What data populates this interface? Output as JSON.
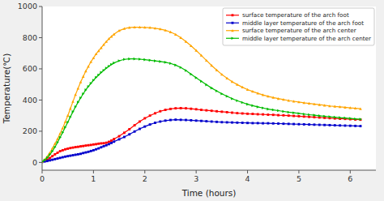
{
  "chart_data": {
    "type": "line",
    "title": "",
    "xlabel": "Time (hours)",
    "ylabel": "Temperature(℃)",
    "xlim": [
      0,
      6.5
    ],
    "ylim": [
      -50,
      1000
    ],
    "xticks": [
      0,
      1,
      2,
      3,
      4,
      5,
      6
    ],
    "yticks": [
      0,
      200,
      400,
      600,
      800,
      1000
    ],
    "grid": false,
    "legend": "upper right",
    "x": [
      0,
      0.05,
      0.1,
      0.15,
      0.2,
      0.25,
      0.3,
      0.35,
      0.4,
      0.45,
      0.5,
      0.55,
      0.6,
      0.65,
      0.7,
      0.75,
      0.8,
      0.85,
      0.9,
      0.95,
      1.0,
      1.05,
      1.1,
      1.15,
      1.2,
      1.25,
      1.3,
      1.35,
      1.4,
      1.5,
      1.6,
      1.7,
      1.8,
      1.9,
      2.0,
      2.1,
      2.2,
      2.3,
      2.4,
      2.5,
      2.6,
      2.7,
      2.8,
      2.9,
      3.0,
      3.1,
      3.2,
      3.3,
      3.4,
      3.5,
      3.6,
      3.7,
      3.8,
      3.9,
      4.0,
      4.1,
      4.2,
      4.3,
      4.4,
      4.5,
      4.6,
      4.7,
      4.8,
      4.9,
      5.0,
      5.1,
      5.2,
      5.3,
      5.4,
      5.5,
      5.6,
      5.7,
      5.8,
      5.9,
      6.0,
      6.1,
      6.2
    ],
    "series": [
      {
        "name": "surface temperature of the arch foot",
        "color": "#ff0000",
        "marker": "square",
        "values": [
          5,
          10,
          18,
          28,
          40,
          52,
          62,
          72,
          78,
          84,
          88,
          92,
          95,
          98,
          100,
          103,
          105,
          108,
          110,
          112,
          115,
          117,
          120,
          122,
          123,
          126,
          132,
          140,
          150,
          168,
          190,
          213,
          238,
          262,
          283,
          300,
          315,
          328,
          337,
          343,
          347,
          348,
          347,
          344,
          341,
          337,
          334,
          331,
          328,
          325,
          322,
          319,
          316,
          314,
          312,
          311,
          309,
          308,
          306,
          305,
          303,
          302,
          300,
          298,
          296,
          294,
          292,
          290,
          288,
          286,
          284,
          282,
          280,
          279,
          277,
          275,
          274
        ]
      },
      {
        "name": "middle layer temperature of the arch foot",
        "color": "#0000cc",
        "marker": "square",
        "values": [
          3,
          6,
          9,
          13,
          17,
          21,
          25,
          29,
          33,
          37,
          40,
          43,
          46,
          49,
          52,
          55,
          60,
          64,
          68,
          73,
          78,
          84,
          90,
          97,
          104,
          110,
          117,
          125,
          133,
          148,
          163,
          180,
          198,
          215,
          230,
          243,
          254,
          262,
          268,
          272,
          274,
          273,
          272,
          270,
          268,
          266,
          264,
          262,
          260,
          258,
          257,
          256,
          255,
          254,
          253,
          252,
          252,
          251,
          251,
          250,
          249,
          248,
          247,
          246,
          245,
          244,
          243,
          242,
          241,
          240,
          239,
          238,
          237,
          236,
          235,
          234,
          233
        ]
      },
      {
        "name": "surface temperature of the arch center",
        "color": "#ffa500",
        "marker": "triangle-up",
        "values": [
          5,
          18,
          38,
          62,
          90,
          120,
          150,
          185,
          220,
          260,
          300,
          345,
          390,
          435,
          475,
          515,
          550,
          585,
          615,
          645,
          670,
          695,
          715,
          735,
          755,
          775,
          793,
          808,
          822,
          845,
          858,
          865,
          867,
          867,
          866,
          864,
          860,
          855,
          847,
          836,
          821,
          800,
          775,
          748,
          718,
          686,
          654,
          622,
          592,
          564,
          540,
          518,
          499,
          482,
          467,
          455,
          443,
          433,
          424,
          416,
          409,
          403,
          397,
          392,
          387,
          382,
          378,
          374,
          370,
          366,
          362,
          359,
          356,
          353,
          350,
          347,
          344
        ]
      },
      {
        "name": "middle layer temperature of the arch center",
        "color": "#00bb00",
        "marker": "triangle-right",
        "values": [
          5,
          15,
          30,
          50,
          72,
          98,
          128,
          160,
          192,
          225,
          258,
          292,
          325,
          357,
          386,
          414,
          440,
          465,
          487,
          507,
          527,
          545,
          561,
          577,
          591,
          605,
          617,
          628,
          638,
          652,
          661,
          664,
          664,
          662,
          659,
          655,
          651,
          647,
          642,
          635,
          624,
          609,
          589,
          566,
          543,
          520,
          498,
          477,
          458,
          440,
          424,
          409,
          396,
          384,
          373,
          364,
          356,
          349,
          342,
          337,
          332,
          327,
          322,
          318,
          314,
          310,
          306,
          303,
          299,
          296,
          293,
          290,
          287,
          285,
          282,
          279,
          277
        ]
      }
    ]
  }
}
